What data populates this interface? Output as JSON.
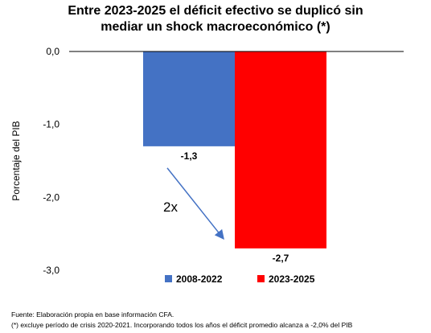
{
  "chart_data": {
    "type": "bar",
    "title_lines": [
      "Entre 2023-2025 el déficit efectivo se duplicó sin",
      "mediar un shock macroeconómico (*)"
    ],
    "ylabel": "Porcentaje del PIB",
    "ylim": [
      -3.0,
      0.0
    ],
    "yticks": [
      {
        "value": 0.0,
        "label": "0,0"
      },
      {
        "value": -1.0,
        "label": "-1,0"
      },
      {
        "value": -2.0,
        "label": "-2,0"
      },
      {
        "value": -3.0,
        "label": "-3,0"
      }
    ],
    "grid": false,
    "legend_position": "bottom",
    "series": [
      {
        "name": "2008-2022",
        "value": -1.3,
        "label": "-1,3",
        "color": "#4472c4"
      },
      {
        "name": "2023-2025",
        "value": -2.7,
        "label": "-2,7",
        "color": "#ff0000"
      }
    ],
    "annotation": {
      "text": "2x",
      "arrow_color": "#4472c4"
    }
  },
  "notes": [
    "Fuente: Elaboración propia en base información CFA.",
    "(*) excluye período de crisis 2020-2021. Incorporando todos los años el déficit promedio alcanza a -2,0% del PIB"
  ]
}
